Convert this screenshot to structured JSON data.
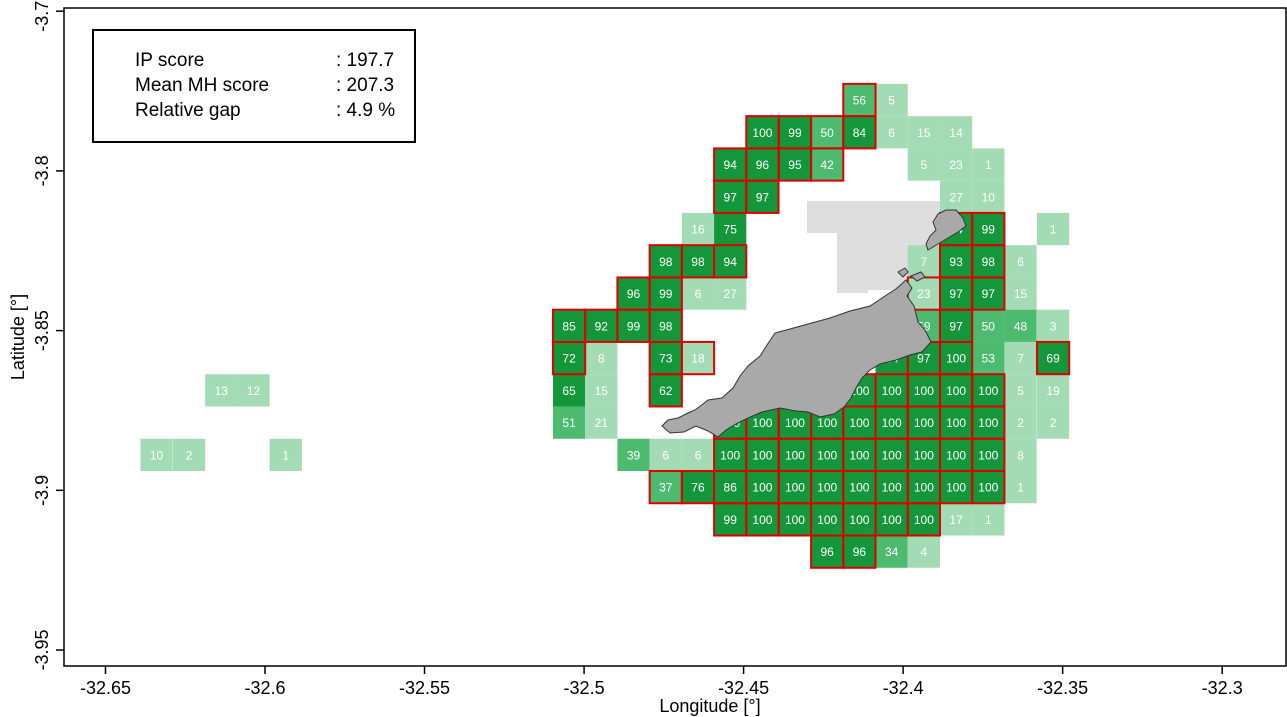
{
  "chart_data": {
    "type": "heatmap",
    "xlabel": "Longitude [°]",
    "ylabel": "Latitude [°]",
    "xlim": [
      -32.663,
      -32.28
    ],
    "ylim": [
      -3.955,
      -3.749
    ],
    "x_ticks": [
      {
        "value": -32.65,
        "label": "-32.65"
      },
      {
        "value": -32.6,
        "label": "-32.6"
      },
      {
        "value": -32.55,
        "label": "-32.55"
      },
      {
        "value": -32.5,
        "label": "-32.5"
      },
      {
        "value": -32.45,
        "label": "-32.45"
      },
      {
        "value": -32.4,
        "label": "-32.4"
      },
      {
        "value": -32.35,
        "label": "-32.35"
      },
      {
        "value": -32.3,
        "label": "-32.3"
      }
    ],
    "y_ticks": [
      {
        "value": -3.75,
        "label": "-3.75"
      },
      {
        "value": -3.8,
        "label": "-3.8"
      },
      {
        "value": -3.85,
        "label": "-3.85"
      },
      {
        "value": -3.9,
        "label": "-3.9"
      },
      {
        "value": -3.95,
        "label": "-3.95"
      }
    ],
    "grid": false,
    "cell_size_deg": 0.0101,
    "colors": {
      "low": "#a3dcb4",
      "mid": "#4dbb6f",
      "high": "#14973b",
      "selected_border": "#e00000",
      "island": "#a9a9a9",
      "island_outline": "#333333",
      "restricted": "#dedede"
    },
    "legend": {
      "placement": "top-left",
      "rows": [
        {
          "label": "IP score",
          "value": ": 197.7"
        },
        {
          "label": "Mean MH score",
          "value": ": 207.3"
        },
        {
          "label": "Relative gap",
          "value": ": 4.9 %"
        }
      ]
    },
    "cells": [
      {
        "lon": -32.4137,
        "lat": -3.7778,
        "value": "56",
        "selected": true
      },
      {
        "lon": -32.4036,
        "lat": -3.7778,
        "value": "5",
        "selected": false
      },
      {
        "lon": -32.4441,
        "lat": -3.7879,
        "value": "100",
        "selected": true
      },
      {
        "lon": -32.4339,
        "lat": -3.7879,
        "value": "99",
        "selected": true
      },
      {
        "lon": -32.4238,
        "lat": -3.7879,
        "value": "50",
        "selected": true
      },
      {
        "lon": -32.4137,
        "lat": -3.7879,
        "value": "84",
        "selected": true
      },
      {
        "lon": -32.4036,
        "lat": -3.7879,
        "value": "6",
        "selected": false
      },
      {
        "lon": -32.3935,
        "lat": -3.7879,
        "value": "15",
        "selected": false
      },
      {
        "lon": -32.3834,
        "lat": -3.7879,
        "value": "14",
        "selected": false
      },
      {
        "lon": -32.4542,
        "lat": -3.798,
        "value": "94",
        "selected": true
      },
      {
        "lon": -32.4441,
        "lat": -3.798,
        "value": "96",
        "selected": true
      },
      {
        "lon": -32.4339,
        "lat": -3.798,
        "value": "95",
        "selected": true
      },
      {
        "lon": -32.4238,
        "lat": -3.798,
        "value": "42",
        "selected": true
      },
      {
        "lon": -32.3935,
        "lat": -3.798,
        "value": "5",
        "selected": false
      },
      {
        "lon": -32.3834,
        "lat": -3.798,
        "value": "23",
        "selected": false
      },
      {
        "lon": -32.3733,
        "lat": -3.798,
        "value": "1",
        "selected": false
      },
      {
        "lon": -32.4542,
        "lat": -3.8081,
        "value": "97",
        "selected": true
      },
      {
        "lon": -32.4441,
        "lat": -3.8081,
        "value": "97",
        "selected": true
      },
      {
        "lon": -32.3834,
        "lat": -3.8081,
        "value": "27",
        "selected": false
      },
      {
        "lon": -32.3733,
        "lat": -3.8081,
        "value": "10",
        "selected": false
      },
      {
        "lon": -32.4643,
        "lat": -3.8182,
        "value": "16",
        "selected": false
      },
      {
        "lon": -32.4542,
        "lat": -3.8182,
        "value": "75",
        "selected": false
      },
      {
        "lon": -32.3834,
        "lat": -3.8182,
        "value": "94",
        "selected": true
      },
      {
        "lon": -32.3733,
        "lat": -3.8182,
        "value": "99",
        "selected": true
      },
      {
        "lon": -32.353,
        "lat": -3.8182,
        "value": "1",
        "selected": false
      },
      {
        "lon": -32.4744,
        "lat": -3.8283,
        "value": "98",
        "selected": true
      },
      {
        "lon": -32.4643,
        "lat": -3.8283,
        "value": "98",
        "selected": true
      },
      {
        "lon": -32.4542,
        "lat": -3.8283,
        "value": "94",
        "selected": true
      },
      {
        "lon": -32.3935,
        "lat": -3.8283,
        "value": "7",
        "selected": false
      },
      {
        "lon": -32.3834,
        "lat": -3.8283,
        "value": "93",
        "selected": true
      },
      {
        "lon": -32.3733,
        "lat": -3.8283,
        "value": "98",
        "selected": true
      },
      {
        "lon": -32.3632,
        "lat": -3.8283,
        "value": "6",
        "selected": false
      },
      {
        "lon": -32.4845,
        "lat": -3.8384,
        "value": "96",
        "selected": true
      },
      {
        "lon": -32.4744,
        "lat": -3.8384,
        "value": "99",
        "selected": true
      },
      {
        "lon": -32.4643,
        "lat": -3.8384,
        "value": "6",
        "selected": false
      },
      {
        "lon": -32.4542,
        "lat": -3.8384,
        "value": "27",
        "selected": false
      },
      {
        "lon": -32.3935,
        "lat": -3.8384,
        "value": "23",
        "selected": true
      },
      {
        "lon": -32.3834,
        "lat": -3.8384,
        "value": "97",
        "selected": true
      },
      {
        "lon": -32.3733,
        "lat": -3.8384,
        "value": "97",
        "selected": true
      },
      {
        "lon": -32.3632,
        "lat": -3.8384,
        "value": "15",
        "selected": false
      },
      {
        "lon": -32.5047,
        "lat": -3.8485,
        "value": "85",
        "selected": true
      },
      {
        "lon": -32.4946,
        "lat": -3.8485,
        "value": "92",
        "selected": true
      },
      {
        "lon": -32.4845,
        "lat": -3.8485,
        "value": "99",
        "selected": true
      },
      {
        "lon": -32.4744,
        "lat": -3.8485,
        "value": "98",
        "selected": true
      },
      {
        "lon": -32.3935,
        "lat": -3.8485,
        "value": "59",
        "selected": false
      },
      {
        "lon": -32.3834,
        "lat": -3.8485,
        "value": "97",
        "selected": true
      },
      {
        "lon": -32.3733,
        "lat": -3.8485,
        "value": "50",
        "selected": false
      },
      {
        "lon": -32.3632,
        "lat": -3.8485,
        "value": "48",
        "selected": false
      },
      {
        "lon": -32.353,
        "lat": -3.8485,
        "value": "3",
        "selected": false
      },
      {
        "lon": -32.5047,
        "lat": -3.8586,
        "value": "72",
        "selected": true
      },
      {
        "lon": -32.4946,
        "lat": -3.8586,
        "value": "8",
        "selected": false
      },
      {
        "lon": -32.4744,
        "lat": -3.8586,
        "value": "73",
        "selected": true
      },
      {
        "lon": -32.4643,
        "lat": -3.8586,
        "value": "18",
        "selected": true
      },
      {
        "lon": -32.4036,
        "lat": -3.8586,
        "value": "64",
        "selected": false
      },
      {
        "lon": -32.3935,
        "lat": -3.8586,
        "value": "97",
        "selected": true
      },
      {
        "lon": -32.3834,
        "lat": -3.8586,
        "value": "100",
        "selected": true
      },
      {
        "lon": -32.3733,
        "lat": -3.8586,
        "value": "53",
        "selected": false
      },
      {
        "lon": -32.3632,
        "lat": -3.8586,
        "value": "7",
        "selected": false
      },
      {
        "lon": -32.353,
        "lat": -3.8586,
        "value": "69",
        "selected": true
      },
      {
        "lon": -32.6137,
        "lat": -3.8687,
        "value": "13",
        "selected": false
      },
      {
        "lon": -32.6036,
        "lat": -3.8687,
        "value": "12",
        "selected": false
      },
      {
        "lon": -32.5047,
        "lat": -3.8687,
        "value": "65",
        "selected": false
      },
      {
        "lon": -32.4946,
        "lat": -3.8687,
        "value": "15",
        "selected": false
      },
      {
        "lon": -32.4744,
        "lat": -3.8687,
        "value": "62",
        "selected": true
      },
      {
        "lon": -32.4137,
        "lat": -3.8687,
        "value": "100",
        "selected": true
      },
      {
        "lon": -32.4036,
        "lat": -3.8687,
        "value": "100",
        "selected": true
      },
      {
        "lon": -32.3935,
        "lat": -3.8687,
        "value": "100",
        "selected": true
      },
      {
        "lon": -32.3834,
        "lat": -3.8687,
        "value": "100",
        "selected": true
      },
      {
        "lon": -32.3733,
        "lat": -3.8687,
        "value": "100",
        "selected": true
      },
      {
        "lon": -32.3632,
        "lat": -3.8687,
        "value": "5",
        "selected": false
      },
      {
        "lon": -32.353,
        "lat": -3.8687,
        "value": "19",
        "selected": false
      },
      {
        "lon": -32.5047,
        "lat": -3.8788,
        "value": "51",
        "selected": false
      },
      {
        "lon": -32.4946,
        "lat": -3.8788,
        "value": "21",
        "selected": false
      },
      {
        "lon": -32.4542,
        "lat": -3.8788,
        "value": "100",
        "selected": true
      },
      {
        "lon": -32.4441,
        "lat": -3.8788,
        "value": "100",
        "selected": true
      },
      {
        "lon": -32.4339,
        "lat": -3.8788,
        "value": "100",
        "selected": true
      },
      {
        "lon": -32.4238,
        "lat": -3.8788,
        "value": "100",
        "selected": true
      },
      {
        "lon": -32.4137,
        "lat": -3.8788,
        "value": "100",
        "selected": true
      },
      {
        "lon": -32.4036,
        "lat": -3.8788,
        "value": "100",
        "selected": true
      },
      {
        "lon": -32.3935,
        "lat": -3.8788,
        "value": "100",
        "selected": true
      },
      {
        "lon": -32.3834,
        "lat": -3.8788,
        "value": "100",
        "selected": true
      },
      {
        "lon": -32.3733,
        "lat": -3.8788,
        "value": "100",
        "selected": true
      },
      {
        "lon": -32.3632,
        "lat": -3.8788,
        "value": "2",
        "selected": false
      },
      {
        "lon": -32.353,
        "lat": -3.8788,
        "value": "2",
        "selected": false
      },
      {
        "lon": -32.634,
        "lat": -3.8889,
        "value": "10",
        "selected": false
      },
      {
        "lon": -32.6238,
        "lat": -3.8889,
        "value": "2",
        "selected": false
      },
      {
        "lon": -32.5935,
        "lat": -3.8889,
        "value": "1",
        "selected": false
      },
      {
        "lon": -32.4845,
        "lat": -3.8889,
        "value": "39",
        "selected": false
      },
      {
        "lon": -32.4744,
        "lat": -3.8889,
        "value": "6",
        "selected": false
      },
      {
        "lon": -32.4643,
        "lat": -3.8889,
        "value": "6",
        "selected": false
      },
      {
        "lon": -32.4542,
        "lat": -3.8889,
        "value": "100",
        "selected": true
      },
      {
        "lon": -32.4441,
        "lat": -3.8889,
        "value": "100",
        "selected": true
      },
      {
        "lon": -32.4339,
        "lat": -3.8889,
        "value": "100",
        "selected": true
      },
      {
        "lon": -32.4238,
        "lat": -3.8889,
        "value": "100",
        "selected": true
      },
      {
        "lon": -32.4137,
        "lat": -3.8889,
        "value": "100",
        "selected": true
      },
      {
        "lon": -32.4036,
        "lat": -3.8889,
        "value": "100",
        "selected": true
      },
      {
        "lon": -32.3935,
        "lat": -3.8889,
        "value": "100",
        "selected": true
      },
      {
        "lon": -32.3834,
        "lat": -3.8889,
        "value": "100",
        "selected": true
      },
      {
        "lon": -32.3733,
        "lat": -3.8889,
        "value": "100",
        "selected": true
      },
      {
        "lon": -32.3632,
        "lat": -3.8889,
        "value": "8",
        "selected": false
      },
      {
        "lon": -32.4744,
        "lat": -3.899,
        "value": "37",
        "selected": true
      },
      {
        "lon": -32.4643,
        "lat": -3.899,
        "value": "76",
        "selected": true
      },
      {
        "lon": -32.4542,
        "lat": -3.899,
        "value": "86",
        "selected": true
      },
      {
        "lon": -32.4441,
        "lat": -3.899,
        "value": "100",
        "selected": true
      },
      {
        "lon": -32.4339,
        "lat": -3.899,
        "value": "100",
        "selected": true
      },
      {
        "lon": -32.4238,
        "lat": -3.899,
        "value": "100",
        "selected": true
      },
      {
        "lon": -32.4137,
        "lat": -3.899,
        "value": "100",
        "selected": true
      },
      {
        "lon": -32.4036,
        "lat": -3.899,
        "value": "100",
        "selected": true
      },
      {
        "lon": -32.3935,
        "lat": -3.899,
        "value": "100",
        "selected": true
      },
      {
        "lon": -32.3834,
        "lat": -3.899,
        "value": "100",
        "selected": true
      },
      {
        "lon": -32.3733,
        "lat": -3.899,
        "value": "100",
        "selected": true
      },
      {
        "lon": -32.3632,
        "lat": -3.899,
        "value": "1",
        "selected": false
      },
      {
        "lon": -32.4542,
        "lat": -3.9091,
        "value": "99",
        "selected": true
      },
      {
        "lon": -32.4441,
        "lat": -3.9091,
        "value": "100",
        "selected": true
      },
      {
        "lon": -32.4339,
        "lat": -3.9091,
        "value": "100",
        "selected": true
      },
      {
        "lon": -32.4238,
        "lat": -3.9091,
        "value": "100",
        "selected": true
      },
      {
        "lon": -32.4137,
        "lat": -3.9091,
        "value": "100",
        "selected": true
      },
      {
        "lon": -32.4036,
        "lat": -3.9091,
        "value": "100",
        "selected": true
      },
      {
        "lon": -32.3935,
        "lat": -3.9091,
        "value": "100",
        "selected": true
      },
      {
        "lon": -32.3834,
        "lat": -3.9091,
        "value": "17",
        "selected": false
      },
      {
        "lon": -32.3733,
        "lat": -3.9091,
        "value": "1",
        "selected": false
      },
      {
        "lon": -32.4238,
        "lat": -3.9192,
        "value": "96",
        "selected": true
      },
      {
        "lon": -32.4137,
        "lat": -3.9192,
        "value": "96",
        "selected": true
      },
      {
        "lon": -32.4036,
        "lat": -3.9192,
        "value": "34",
        "selected": false
      },
      {
        "lon": -32.3935,
        "lat": -3.9192,
        "value": "4",
        "selected": false
      }
    ]
  }
}
